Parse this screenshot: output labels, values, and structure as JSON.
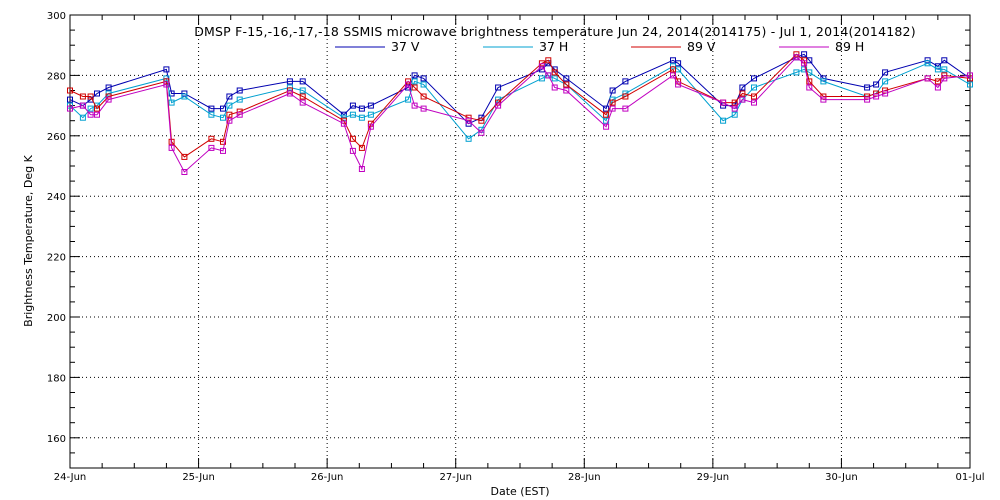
{
  "chart_data": {
    "type": "line",
    "title": "DMSP F-15,-16,-17,-18 SSMIS microwave brightness temperature Jun 24, 2014(2014175) - Jul  1, 2014(2014182)",
    "xlabel": "Date (EST)",
    "ylabel": "Brightness Temperature, Deg K",
    "xlim": [
      0,
      7
    ],
    "ylim": [
      150,
      300
    ],
    "x_ticks": [
      {
        "value": 0,
        "label": "24-Jun"
      },
      {
        "value": 1,
        "label": "25-Jun"
      },
      {
        "value": 2,
        "label": "26-Jun"
      },
      {
        "value": 3,
        "label": "27-Jun"
      },
      {
        "value": 4,
        "label": "28-Jun"
      },
      {
        "value": 5,
        "label": "29-Jun"
      },
      {
        "value": 6,
        "label": "30-Jun"
      },
      {
        "value": 7,
        "label": "01-Jul"
      }
    ],
    "y_ticks": [
      160,
      180,
      200,
      220,
      240,
      260,
      280,
      300
    ],
    "grid": true,
    "legend_position": "top",
    "series": [
      {
        "name": "37 V",
        "color": "#0000b0",
        "x": [
          0,
          0.1,
          0.16,
          0.21,
          0.3,
          0.75,
          0.79,
          0.89,
          1.1,
          1.19,
          1.24,
          1.32,
          1.71,
          1.81,
          2.13,
          2.2,
          2.27,
          2.34,
          2.63,
          2.68,
          2.75,
          3.1,
          3.2,
          3.33,
          3.67,
          3.72,
          3.77,
          3.86,
          4.17,
          4.22,
          4.32,
          4.69,
          4.73,
          5.08,
          5.17,
          5.23,
          5.32,
          5.65,
          5.71,
          5.75,
          5.86,
          6.2,
          6.27,
          6.34,
          6.67,
          6.75,
          6.8,
          7.0
        ],
        "values": [
          272,
          270,
          272,
          274,
          276,
          282,
          274,
          274,
          269,
          269,
          273,
          275,
          278,
          278,
          267,
          270,
          269,
          270,
          276,
          280,
          279,
          264,
          266,
          276,
          282,
          284,
          282,
          279,
          269,
          275,
          278,
          285,
          284,
          270,
          270,
          276,
          279,
          286,
          287,
          285,
          279,
          276,
          277,
          281,
          285,
          283,
          285,
          279
        ]
      },
      {
        "name": "37 H",
        "color": "#00a0d0",
        "x": [
          0,
          0.1,
          0.16,
          0.21,
          0.3,
          0.75,
          0.79,
          0.89,
          1.1,
          1.19,
          1.24,
          1.32,
          1.71,
          1.81,
          2.13,
          2.2,
          2.27,
          2.34,
          2.63,
          2.68,
          2.75,
          3.1,
          3.2,
          3.33,
          3.67,
          3.72,
          3.77,
          3.86,
          4.17,
          4.22,
          4.32,
          4.69,
          4.73,
          5.08,
          5.17,
          5.23,
          5.32,
          5.65,
          5.71,
          5.75,
          5.86,
          6.2,
          6.27,
          6.34,
          6.67,
          6.75,
          6.8,
          7.0
        ],
        "values": [
          270,
          266,
          269,
          270,
          274,
          279,
          271,
          273,
          267,
          266,
          270,
          272,
          276,
          275,
          266,
          267,
          266,
          267,
          272,
          278,
          277,
          259,
          262,
          272,
          279,
          280,
          279,
          277,
          265,
          272,
          274,
          283,
          282,
          265,
          267,
          272,
          276,
          281,
          282,
          281,
          278,
          273,
          274,
          278,
          284,
          282,
          282,
          277
        ]
      },
      {
        "name": "89 V",
        "color": "#d00000",
        "x": [
          0,
          0.1,
          0.16,
          0.21,
          0.3,
          0.75,
          0.79,
          0.89,
          1.1,
          1.19,
          1.24,
          1.32,
          1.71,
          1.81,
          2.13,
          2.2,
          2.27,
          2.34,
          2.63,
          2.68,
          2.75,
          3.1,
          3.2,
          3.33,
          3.67,
          3.72,
          3.77,
          3.86,
          4.17,
          4.22,
          4.32,
          4.69,
          4.73,
          5.08,
          5.17,
          5.23,
          5.32,
          5.65,
          5.71,
          5.75,
          5.86,
          6.2,
          6.27,
          6.34,
          6.67,
          6.75,
          6.8,
          7.0
        ],
        "values": [
          275,
          273,
          273,
          269,
          273,
          278,
          258,
          253,
          259,
          258,
          267,
          268,
          275,
          273,
          265,
          259,
          256,
          264,
          278,
          276,
          273,
          266,
          265,
          271,
          284,
          285,
          281,
          277,
          267,
          271,
          273,
          282,
          278,
          271,
          271,
          274,
          273,
          287,
          285,
          278,
          273,
          273,
          274,
          275,
          279,
          278,
          280,
          279
        ]
      },
      {
        "name": "89 H",
        "color": "#c000c0",
        "x": [
          0,
          0.1,
          0.16,
          0.21,
          0.3,
          0.75,
          0.79,
          0.89,
          1.1,
          1.19,
          1.24,
          1.32,
          1.71,
          1.81,
          2.13,
          2.2,
          2.27,
          2.34,
          2.63,
          2.68,
          2.75,
          3.1,
          3.2,
          3.33,
          3.67,
          3.72,
          3.77,
          3.86,
          4.17,
          4.22,
          4.32,
          4.69,
          4.73,
          5.08,
          5.17,
          5.23,
          5.32,
          5.65,
          5.71,
          5.75,
          5.86,
          6.2,
          6.27,
          6.34,
          6.67,
          6.75,
          6.8,
          7.0
        ],
        "values": [
          269,
          270,
          267,
          267,
          272,
          277,
          256,
          248,
          256,
          255,
          265,
          267,
          274,
          271,
          264,
          255,
          249,
          263,
          277,
          270,
          269,
          265,
          261,
          270,
          283,
          280,
          276,
          275,
          263,
          269,
          269,
          280,
          277,
          271,
          269,
          272,
          271,
          286,
          284,
          276,
          272,
          272,
          273,
          274,
          279,
          276,
          279,
          280
        ]
      }
    ]
  }
}
